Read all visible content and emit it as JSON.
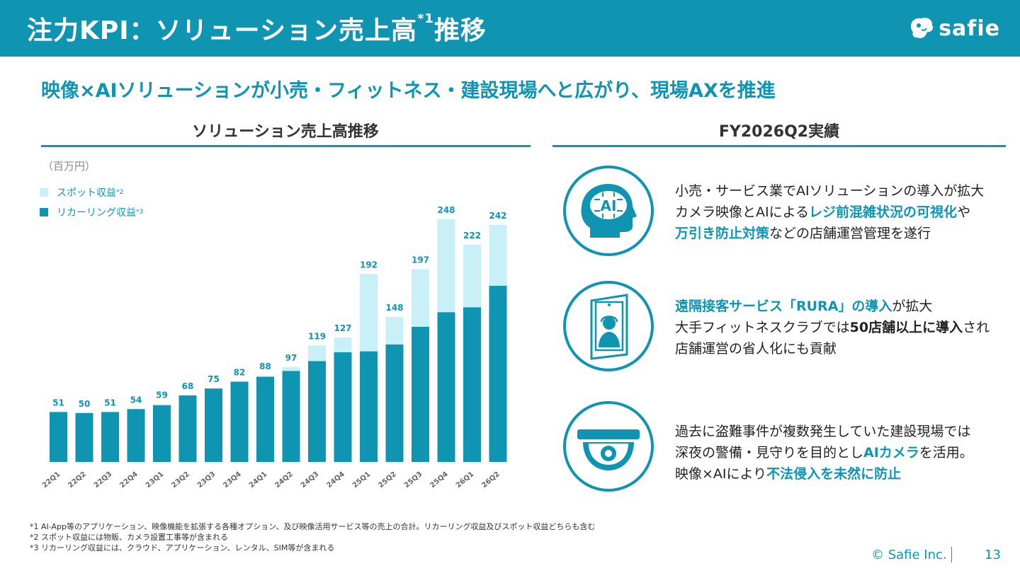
{
  "header": {
    "title": "注力KPI：ソリューション売上高",
    "title_sup": "*1",
    "title_suffix": "推移",
    "logo_text": "safie"
  },
  "subtitle": "映像×AIソリューションが小売・フィットネス・建設現場へと広がり、現場AXを推進",
  "left_section": {
    "title": "ソリューション売上高推移",
    "unit": "（百万円）",
    "legend": [
      {
        "label": "スポット収益",
        "sup": "*2",
        "color": "#c9f0f7"
      },
      {
        "label": "リカーリング収益",
        "sup": "*3",
        "color": "#0f95b2"
      }
    ]
  },
  "chart_data": {
    "type": "bar",
    "stacked": true,
    "categories": [
      "22Q1",
      "22Q2",
      "22Q3",
      "22Q4",
      "23Q1",
      "23Q2",
      "23Q3",
      "23Q4",
      "24Q1",
      "24Q2",
      "24Q3",
      "24Q4",
      "25Q1",
      "25Q2",
      "25Q3",
      "25Q4",
      "26Q1",
      "26Q2"
    ],
    "series": [
      {
        "name": "リカーリング収益",
        "color": "#0f95b2",
        "values": [
          51,
          50,
          51,
          54,
          58,
          68,
          75,
          82,
          87,
          93,
          103,
          112,
          113,
          120,
          138,
          153,
          158,
          180
        ]
      },
      {
        "name": "スポット収益",
        "color": "#c9f0f7",
        "values": [
          0,
          0,
          0,
          0,
          1,
          0,
          0,
          0,
          1,
          4,
          16,
          15,
          79,
          28,
          59,
          95,
          64,
          62
        ]
      }
    ],
    "totals": [
      51,
      50,
      51,
      54,
      59,
      68,
      75,
      82,
      88,
      97,
      119,
      127,
      192,
      148,
      197,
      248,
      222,
      242
    ],
    "ylim": [
      0,
      250
    ]
  },
  "right_section": {
    "title": "FY2026Q2実績",
    "items": [
      {
        "icon": "ai-head-icon",
        "lines": [
          [
            {
              "t": "小売・サービス業でAIソリューションの導入が拡大",
              "s": ""
            }
          ],
          [
            {
              "t": "カメラ映像とAIによる",
              "s": ""
            },
            {
              "t": "レジ前混雑状況の可視化",
              "s": "hl"
            },
            {
              "t": "や",
              "s": ""
            }
          ],
          [
            {
              "t": "万引き防止対策",
              "s": "hl"
            },
            {
              "t": "などの店舗運営管理を遂行",
              "s": ""
            }
          ]
        ]
      },
      {
        "icon": "reception-tablet-icon",
        "lines": [
          [
            {
              "t": "遠隔接客サービス「RURA」の導入",
              "s": "hl"
            },
            {
              "t": "が拡大",
              "s": ""
            }
          ],
          [
            {
              "t": "大手フィットネスクラブでは",
              "s": ""
            },
            {
              "t": "50店舗以上に導入",
              "s": "bd"
            },
            {
              "t": "され",
              "s": ""
            }
          ],
          [
            {
              "t": "店舗運営の省人化にも貢献",
              "s": ""
            }
          ]
        ]
      },
      {
        "icon": "dome-camera-icon",
        "lines": [
          [
            {
              "t": "過去に盗難事件が複数発生していた建設現場では",
              "s": ""
            }
          ],
          [
            {
              "t": "深夜の警備・見守りを目的とし",
              "s": ""
            },
            {
              "t": "AIカメラ",
              "s": "hl"
            },
            {
              "t": "を活用。",
              "s": ""
            }
          ],
          [
            {
              "t": "映像×AIにより",
              "s": ""
            },
            {
              "t": "不法侵入を未然に防止",
              "s": "hl"
            }
          ]
        ]
      }
    ]
  },
  "footnotes": [
    "*1 AI-App等のアプリケーション、映像機能を拡張する各種オプション、及び映像活用サービス等の売上の合計。リカーリング収益及びスポット収益どちらも含む",
    "*2 スポット収益には物販、カメラ設置工事等が含まれる",
    "*3 リカーリング収益には、クラウド、アプリケーション、レンタル、SIM等が含まれる"
  ],
  "footer": {
    "copyright": "© Safie Inc.",
    "page": "13"
  }
}
